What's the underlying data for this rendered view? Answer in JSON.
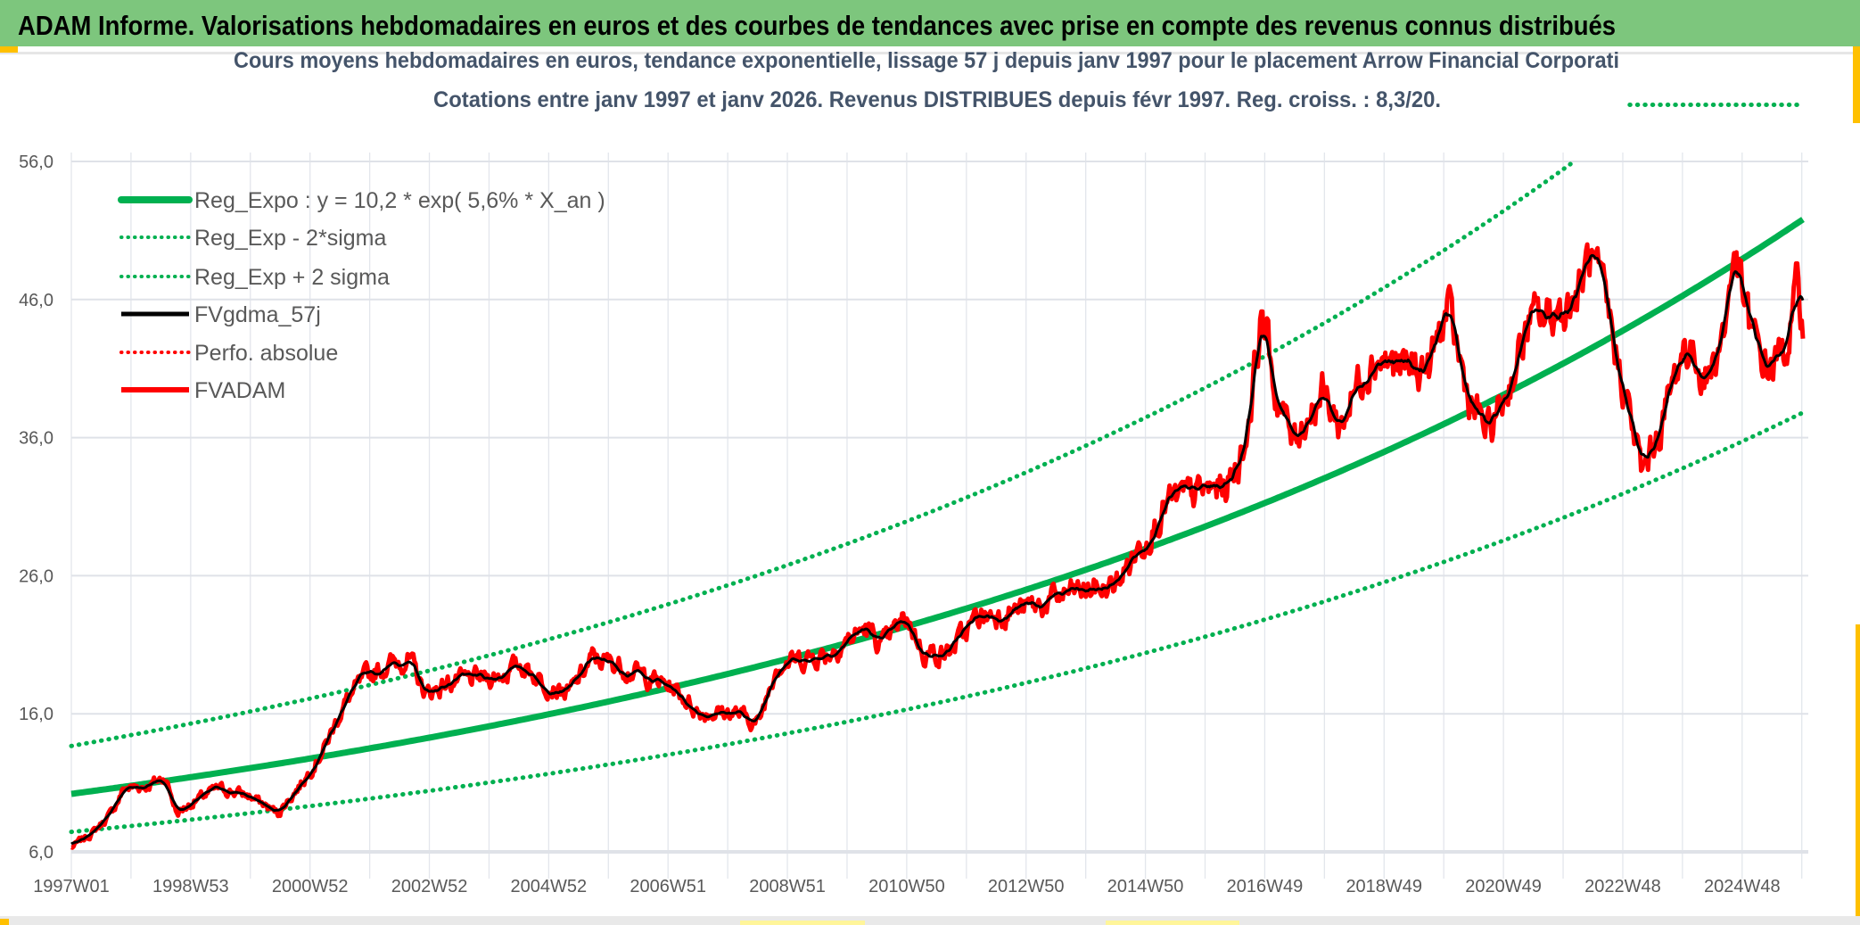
{
  "header": {
    "title": "ADAM Informe. Valorisations hebdomadaires en euros et des courbes de tendances avec prise en compte des revenus connus distribués",
    "bar_color": "#7dc67d"
  },
  "chart_data": {
    "type": "line",
    "title": "Cours moyens hebdomadaires en euros, tendance exponentielle, lissage 57 j depuis janv 1997 pour le placement Arrow Financial Corporati",
    "subtitle": "Cotations entre janv 1997 et janv 2026. Revenus DISTRIBUES depuis févr 1997. Reg. croiss. : 8,3/20.",
    "xlabel": "",
    "ylabel": "",
    "ylim": [
      6,
      56
    ],
    "y_ticks": [
      "56,0",
      "46,0",
      "36,0",
      "26,0",
      "16,0",
      "6,0"
    ],
    "x_range": [
      "1997W01",
      "2026W02"
    ],
    "x_tick_labels": [
      "1997W01",
      "1998W53",
      "2000W52",
      "2002W52",
      "2004W52",
      "2006W51",
      "2008W51",
      "2010W50",
      "2012W50",
      "2014W50",
      "2016W49",
      "2018W49",
      "2020W49",
      "2022W48",
      "2024W48"
    ],
    "grid": {
      "horizontal": true,
      "vertical": true
    },
    "legend_placement": "top-left",
    "legend": [
      {
        "label": "Reg_Expo : y = 10,2 * exp( 5,6% *  X_an )",
        "style": "solid-thick",
        "color": "#00b050"
      },
      {
        "label": "Reg_Exp - 2*sigma",
        "style": "dotted",
        "color": "#00b050"
      },
      {
        "label": "Reg_Exp + 2 sigma",
        "style": "dotted",
        "color": "#00b050"
      },
      {
        "label": "FVgdma_57j",
        "style": "solid",
        "color": "#000000"
      },
      {
        "label": "Perfo. absolue",
        "style": "dotted",
        "color": "#ff0000"
      },
      {
        "label": "FVADAM",
        "style": "solid",
        "color": "#ff0000"
      }
    ],
    "regression": {
      "a": 10.2,
      "growth_rate": 0.056,
      "lower_band_multiplier": 0.73,
      "upper_band_multiplier": 1.34
    },
    "series": [
      {
        "name": "FVADAM",
        "color": "#ff0000",
        "points": [
          [
            "1997W01",
            6.3
          ],
          [
            "1997W21",
            7.5
          ],
          [
            "1997W36",
            8.8
          ],
          [
            "1997W47",
            10.6
          ],
          [
            "1998W15",
            10.8
          ],
          [
            "1998W31",
            11.4
          ],
          [
            "1998W41",
            8.8
          ],
          [
            "1999W05",
            9.7
          ],
          [
            "1999W25",
            10.6
          ],
          [
            "1999W51",
            10.1
          ],
          [
            "2000W25",
            8.8
          ],
          [
            "2000W46",
            11.0
          ],
          [
            "2001W14",
            13.6
          ],
          [
            "2001W30",
            16.6
          ],
          [
            "2001W50",
            18.7
          ],
          [
            "2002W19",
            19.6
          ],
          [
            "2002W35",
            20.0
          ],
          [
            "2002W50",
            17.4
          ],
          [
            "2003W19",
            18.3
          ],
          [
            "2004W08",
            18.7
          ],
          [
            "2004W29",
            19.6
          ],
          [
            "2004W49",
            18.3
          ],
          [
            "2005W18",
            17.4
          ],
          [
            "2005W39",
            20.0
          ],
          [
            "2006W08",
            19.6
          ],
          [
            "2006W33",
            18.7
          ],
          [
            "2007W07",
            17.8
          ],
          [
            "2007W28",
            16.1
          ],
          [
            "2008W07",
            16.1
          ],
          [
            "2008W28",
            15.3
          ],
          [
            "2008W43",
            19.6
          ],
          [
            "2009W17",
            20.0
          ],
          [
            "2009W37",
            20.4
          ],
          [
            "2010W17",
            22.2
          ],
          [
            "2010W32",
            20.9
          ],
          [
            "2011W01",
            23.0
          ],
          [
            "2011W16",
            20.4
          ],
          [
            "2011W37",
            20.4
          ],
          [
            "2012W11",
            23.0
          ],
          [
            "2012W37",
            23.4
          ],
          [
            "2013W16",
            23.9
          ],
          [
            "2013W36",
            24.7
          ],
          [
            "2014W26",
            25.2
          ],
          [
            "2014W52",
            28.6
          ],
          [
            "2015W20",
            31.2
          ],
          [
            "2015W46",
            32.0
          ],
          [
            "2016W20",
            32.5
          ],
          [
            "2016W36",
            35.5
          ],
          [
            "2016W51",
            45.3
          ],
          [
            "2017W10",
            39.3
          ],
          [
            "2017W25",
            35.9
          ],
          [
            "2017W41",
            38.0
          ],
          [
            "2017W51",
            39.3
          ],
          [
            "2018W15",
            36.8
          ],
          [
            "2018W35",
            41.0
          ],
          [
            "2018W46",
            41.9
          ],
          [
            "2019W15",
            41.0
          ],
          [
            "2019W40",
            41.0
          ],
          [
            "2020W04",
            45.3
          ],
          [
            "2020W24",
            38.5
          ],
          [
            "2020W40",
            36.3
          ],
          [
            "2021W04",
            39.3
          ],
          [
            "2021W24",
            44.4
          ],
          [
            "2021W45",
            44.9
          ],
          [
            "2022W14",
            46.2
          ],
          [
            "2022W24",
            49.2
          ],
          [
            "2022W40",
            44.9
          ],
          [
            "2023W03",
            39.3
          ],
          [
            "2023W18",
            33.3
          ],
          [
            "2023W34",
            36.8
          ],
          [
            "2024W03",
            42.8
          ],
          [
            "2024W23",
            40.2
          ],
          [
            "2024W39",
            44.4
          ],
          [
            "2024W46",
            49.6
          ],
          [
            "2025W08",
            43.6
          ],
          [
            "2025W23",
            41.0
          ],
          [
            "2025W39",
            42.3
          ],
          [
            "2025W49",
            46.6
          ],
          [
            "2026W02",
            44.9
          ]
        ]
      },
      {
        "name": "FVgdma_57j",
        "color": "#000000",
        "smoothing": "57 j"
      }
    ]
  }
}
